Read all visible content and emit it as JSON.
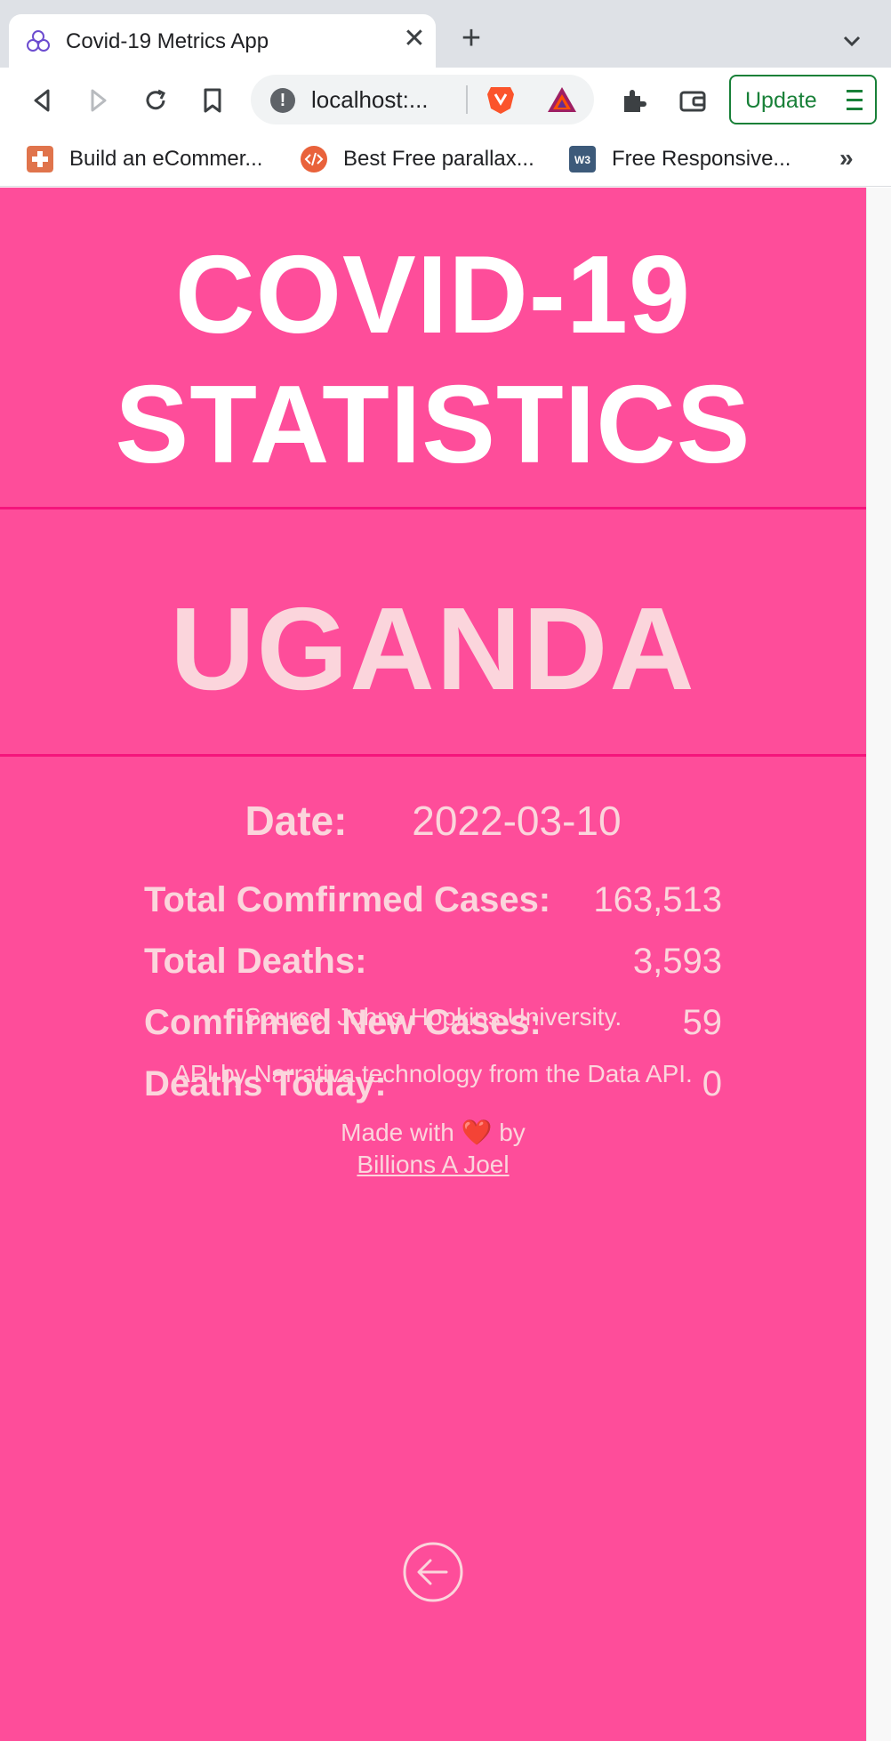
{
  "browser": {
    "tab_title": "Covid-19 Metrics App",
    "tab_close": "✕",
    "new_tab": "+",
    "url": "localhost:...",
    "update_label": "Update",
    "bookmarks": [
      {
        "label": "Build an eCommer...",
        "icon": "plus-square-icon",
        "color": "#e0744c"
      },
      {
        "label": "Best Free parallax...",
        "icon": "code-circle-icon",
        "color": "#e9623b"
      },
      {
        "label": "Free Responsive...",
        "icon": "w3-icon",
        "color": "#3d5a7a"
      }
    ],
    "bookmarks_more": "»"
  },
  "page": {
    "title": "COVID-19 STATISTICS",
    "country": "UGANDA",
    "date_label": "Date:",
    "date_value": "2022-03-10",
    "stats": [
      {
        "label": "Total Comfirmed Cases:",
        "value": "163,513"
      },
      {
        "label": "Total Deaths:",
        "value": "3,593"
      },
      {
        "label": "Comfirmed New Cases:",
        "value": "59"
      },
      {
        "label": "Deaths Today:",
        "value": "0"
      }
    ],
    "source": "Source: Johns Hopkins University.",
    "api_credit": "API by Narrativa technology from the Data API.",
    "made_with_prefix": "Made with",
    "heart": "❤️",
    "made_with_suffix": "by",
    "author": "Billions A Joel",
    "back_icon": "arrow-left-circle-icon"
  },
  "colors": {
    "background": "#fe4d9a",
    "divider": "#f5157c",
    "title": "#ffffff",
    "text": "#fbd5dc"
  }
}
